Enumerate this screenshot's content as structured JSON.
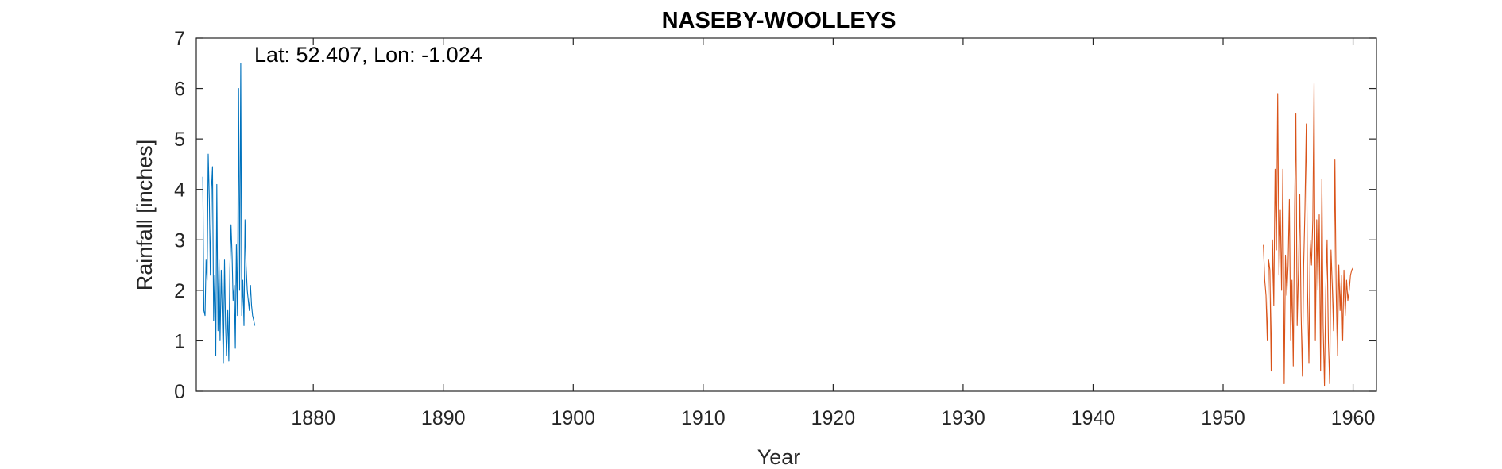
{
  "chart_data": {
    "type": "line",
    "title": "NASEBY-WOOLLEYS",
    "xlabel": "Year",
    "ylabel": "Rainfall [inches]",
    "annotation": "Lat: 52.407, Lon: -1.024",
    "xlim": [
      1871,
      1961.8
    ],
    "ylim": [
      0,
      7
    ],
    "xticks": [
      1880,
      1890,
      1900,
      1910,
      1920,
      1930,
      1940,
      1950,
      1960
    ],
    "xtick_labels": [
      "1880",
      "1890",
      "1900",
      "1910",
      "1920",
      "1930",
      "1940",
      "1950",
      "1960"
    ],
    "yticks": [
      0,
      1,
      2,
      3,
      4,
      5,
      6,
      7
    ],
    "ytick_labels": [
      "0",
      "1",
      "2",
      "3",
      "4",
      "5",
      "6",
      "7"
    ],
    "grid": false,
    "series": [
      {
        "color": "#0072BD",
        "x": [
          1871.5,
          1871.58,
          1871.67,
          1871.75,
          1871.83,
          1871.92,
          1872.0,
          1872.08,
          1872.17,
          1872.25,
          1872.33,
          1872.42,
          1872.5,
          1872.58,
          1872.67,
          1872.75,
          1872.83,
          1872.92,
          1873.0,
          1873.08,
          1873.17,
          1873.25,
          1873.33,
          1873.42,
          1873.5,
          1873.58,
          1873.67,
          1873.75,
          1873.83,
          1873.92,
          1874.0,
          1874.08,
          1874.17,
          1874.25,
          1874.33,
          1874.42,
          1874.5,
          1874.58,
          1874.67,
          1874.75,
          1874.83,
          1874.92,
          1875.0,
          1875.08,
          1875.17,
          1875.25,
          1875.33,
          1875.42,
          1875.5
        ],
        "values": [
          4.25,
          1.6,
          1.5,
          2.6,
          2.2,
          4.7,
          3.8,
          2.3,
          4.0,
          4.45,
          1.4,
          2.3,
          0.7,
          4.1,
          1.2,
          2.6,
          1.0,
          2.4,
          1.5,
          0.55,
          2.6,
          1.3,
          0.7,
          1.6,
          0.6,
          2.4,
          3.3,
          2.7,
          1.8,
          2.1,
          0.85,
          2.9,
          1.5,
          6.0,
          2.0,
          6.5,
          1.5,
          2.2,
          1.3,
          3.4,
          2.5,
          2.0,
          1.8,
          1.6,
          2.1,
          1.7,
          1.5,
          1.4,
          1.3
        ]
      },
      {
        "color": "#D95319",
        "x": [
          1953.1,
          1953.2,
          1953.3,
          1953.4,
          1953.5,
          1953.6,
          1953.7,
          1953.8,
          1953.9,
          1954.0,
          1954.1,
          1954.2,
          1954.3,
          1954.4,
          1954.5,
          1954.6,
          1954.7,
          1954.8,
          1954.9,
          1955.0,
          1955.1,
          1955.2,
          1955.3,
          1955.4,
          1955.5,
          1955.6,
          1955.7,
          1955.8,
          1955.9,
          1956.0,
          1956.1,
          1956.2,
          1956.3,
          1956.4,
          1956.5,
          1956.6,
          1956.7,
          1956.8,
          1956.9,
          1957.0,
          1957.1,
          1957.2,
          1957.3,
          1957.4,
          1957.5,
          1957.6,
          1957.7,
          1957.8,
          1957.9,
          1958.0,
          1958.1,
          1958.2,
          1958.3,
          1958.4,
          1958.5,
          1958.6,
          1958.7,
          1958.8,
          1958.9,
          1959.0,
          1959.1,
          1959.2,
          1959.3,
          1959.4,
          1959.5,
          1959.6,
          1959.7,
          1959.8,
          1959.9,
          1960.0
        ],
        "values": [
          2.9,
          2.2,
          1.9,
          1.0,
          2.6,
          2.4,
          0.4,
          3.0,
          1.7,
          4.4,
          2.8,
          5.9,
          2.3,
          3.6,
          2.0,
          4.4,
          0.15,
          2.7,
          1.9,
          2.5,
          3.8,
          1.0,
          2.2,
          0.5,
          3.6,
          5.5,
          1.3,
          2.4,
          3.9,
          1.6,
          0.3,
          2.5,
          3.6,
          5.3,
          2.0,
          0.55,
          3.0,
          2.5,
          3.4,
          6.1,
          1.0,
          3.4,
          2.0,
          3.5,
          0.4,
          4.2,
          1.3,
          0.1,
          2.0,
          3.0,
          1.0,
          0.15,
          2.8,
          2.1,
          1.2,
          4.6,
          2.0,
          0.7,
          2.5,
          1.6,
          2.3,
          1.0,
          2.4,
          1.5,
          2.2,
          1.8,
          2.0,
          2.3,
          2.4,
          2.45
        ]
      }
    ]
  }
}
